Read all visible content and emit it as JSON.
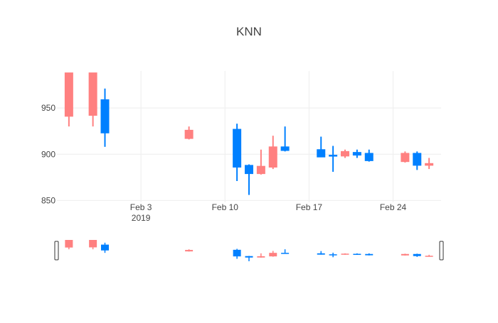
{
  "chart_data": {
    "type": "candlestick",
    "title": "KNN",
    "xlabel": "",
    "ylabel": "",
    "colors": {
      "increasing": "#0080FF",
      "decreasing": "#FF8080",
      "grid": "#EEEEEE"
    },
    "x_range": [
      "2019-01-27",
      "2019-02-28"
    ],
    "ylim": [
      848,
      990
    ],
    "y_ticks": [
      {
        "value": 850,
        "label": "850"
      },
      {
        "value": 900,
        "label": "900"
      },
      {
        "value": 950,
        "label": "950"
      }
    ],
    "x_ticks": [
      {
        "date": "2019-02-03",
        "label": "Feb 3",
        "sublabel": "2019"
      },
      {
        "date": "2019-02-10",
        "label": "Feb 10",
        "sublabel": ""
      },
      {
        "date": "2019-02-17",
        "label": "Feb 17",
        "sublabel": ""
      },
      {
        "date": "2019-02-24",
        "label": "Feb 24",
        "sublabel": ""
      }
    ],
    "candles": [
      {
        "date": "2019-01-28",
        "open": 988,
        "high": 988,
        "low": 930,
        "close": 941
      },
      {
        "date": "2019-01-30",
        "open": 988,
        "high": 988,
        "low": 930,
        "close": 942
      },
      {
        "date": "2019-01-31",
        "open": 923,
        "high": 971,
        "low": 908,
        "close": 959
      },
      {
        "date": "2019-02-07",
        "open": 926,
        "high": 930,
        "low": 916,
        "close": 917
      },
      {
        "date": "2019-02-11",
        "open": 886,
        "high": 933,
        "low": 871,
        "close": 927
      },
      {
        "date": "2019-02-12",
        "open": 879,
        "high": 889,
        "low": 856,
        "close": 888
      },
      {
        "date": "2019-02-13",
        "open": 887,
        "high": 905,
        "low": 878,
        "close": 879
      },
      {
        "date": "2019-02-14",
        "open": 908,
        "high": 920,
        "low": 884,
        "close": 886
      },
      {
        "date": "2019-02-15",
        "open": 904,
        "high": 930,
        "low": 903,
        "close": 908
      },
      {
        "date": "2019-02-18",
        "open": 897,
        "high": 919,
        "low": 897,
        "close": 905
      },
      {
        "date": "2019-02-19",
        "open": 898,
        "high": 909,
        "low": 881,
        "close": 899
      },
      {
        "date": "2019-02-20",
        "open": 903,
        "high": 905,
        "low": 896,
        "close": 898
      },
      {
        "date": "2019-02-21",
        "open": 899,
        "high": 905,
        "low": 896,
        "close": 902
      },
      {
        "date": "2019-02-22",
        "open": 893,
        "high": 905,
        "low": 892,
        "close": 901
      },
      {
        "date": "2019-02-25",
        "open": 901,
        "high": 903,
        "low": 891,
        "close": 892
      },
      {
        "date": "2019-02-26",
        "open": 888,
        "high": 903,
        "low": 883,
        "close": 901
      },
      {
        "date": "2019-02-27",
        "open": 890,
        "high": 896,
        "low": 884,
        "close": 888
      }
    ],
    "rangeslider": true
  }
}
